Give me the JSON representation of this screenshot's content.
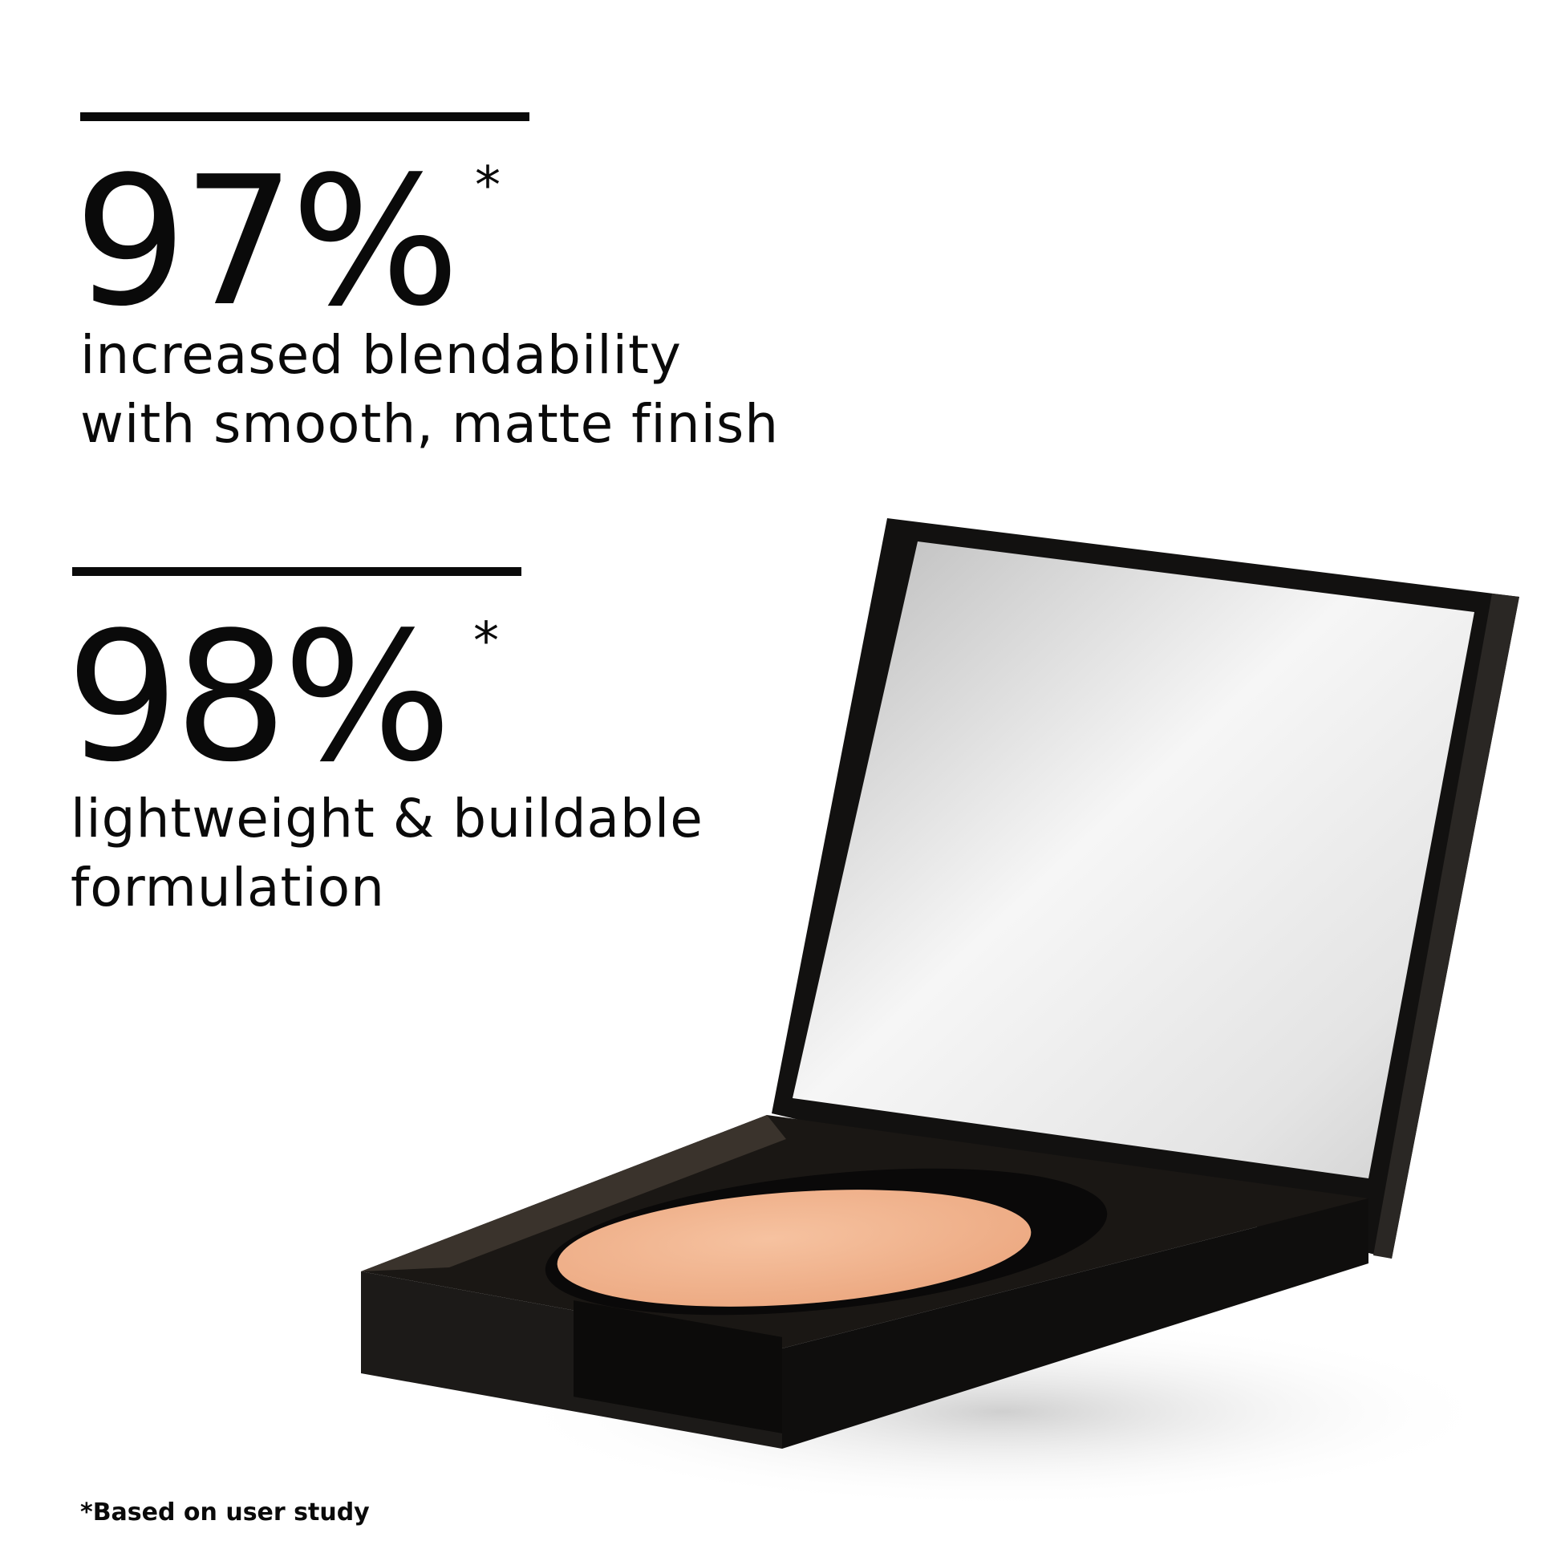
{
  "stats": [
    {
      "value": "97%",
      "marker": "*",
      "line1": "increased blendability",
      "line2": "with smooth, matte finish"
    },
    {
      "value": "98%",
      "marker": "*",
      "line1": "lightweight & buildable",
      "line2": "formulation"
    }
  ],
  "footnote": "*Based on user study",
  "colors": {
    "text": "#0a0a0a",
    "compact": "#141210",
    "powder": "#f2b48e",
    "mirror": "#e8e8e8"
  }
}
